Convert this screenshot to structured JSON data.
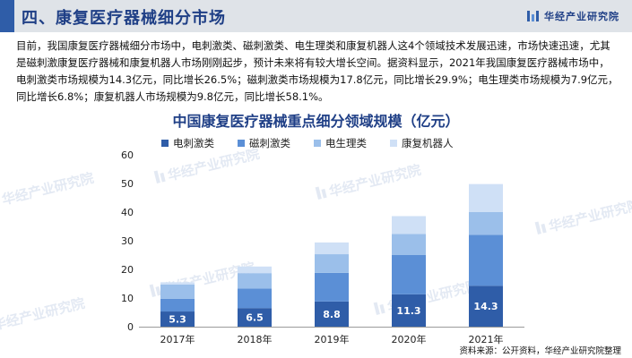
{
  "header": {
    "title": "四、康复医疗器械细分市场",
    "brand": "华经产业研究院"
  },
  "intro_text": "目前，我国康复医疗器械细分市场中，电刺激类、磁刺激类、电生理类和康复机器人这4个领域技术发展迅速，市场快速迅速，尤其是磁刺激康复医疗器械和康复机器人市场刚刚起步，预计未来将有较大增长空间。据资料显示，2021年我国康复医疗器械市场中，电刺激类市场规模为14.3亿元，同比增长26.5%；磁刺激类市场规模为17.8亿元，同比增长29.9%；电生理类市场规模为7.9亿元，同比增长6.8%；康复机器人市场规模为9.8亿元，同比增长58.1%。",
  "watermark": "华经产业研究院",
  "source": "资料来源：公开资料，华经产业研究院整理",
  "colors": {
    "header_accent": "#2f5da8",
    "title": "#1f3f86",
    "series": [
      "#2f5da8",
      "#5b8fd6",
      "#9bbfea",
      "#cfe0f6"
    ]
  },
  "chart_data": {
    "type": "bar",
    "stacked": true,
    "title": "中国康复医疗器械重点细分领域规模（亿元）",
    "categories": [
      "2017年",
      "2018年",
      "2019年",
      "2020年",
      "2021年"
    ],
    "series": [
      {
        "name": "电刺激类",
        "values": [
          5.3,
          6.5,
          8.8,
          11.3,
          14.3
        ]
      },
      {
        "name": "磁刺激类",
        "values": [
          4.4,
          6.8,
          10.0,
          13.7,
          17.8
        ]
      },
      {
        "name": "电生理类",
        "values": [
          5.0,
          5.4,
          6.5,
          7.4,
          7.9
        ]
      },
      {
        "name": "康复机器人",
        "values": [
          0.8,
          2.3,
          4.1,
          6.2,
          9.8
        ]
      }
    ],
    "data_labels_series": "电刺激类",
    "ylim": [
      0,
      60
    ],
    "yticks": [
      0,
      10,
      20,
      30,
      40,
      50,
      60
    ],
    "grid": false,
    "legend": "top"
  }
}
